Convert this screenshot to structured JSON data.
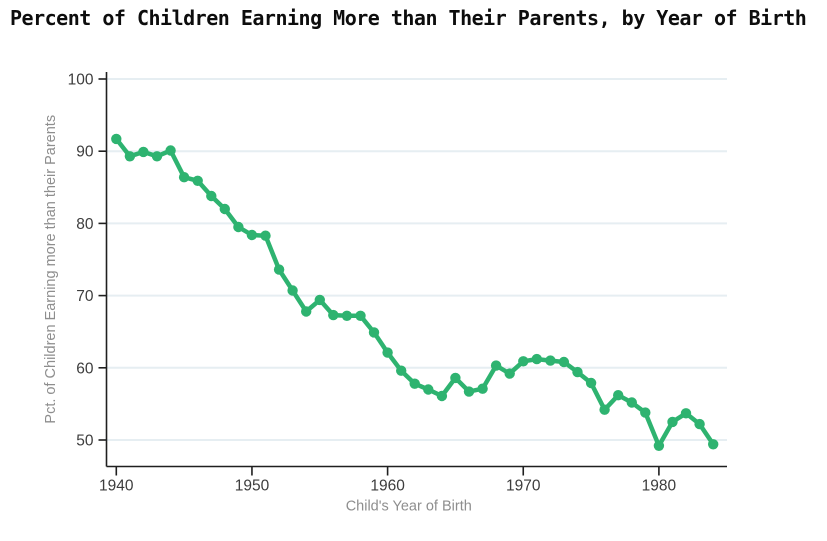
{
  "page": {
    "title": "Percent of Children Earning More than Their Parents, by Year of Birth"
  },
  "chart_data": {
    "type": "line",
    "title": "Percent of Children Earning More than Their Parents, by Year of Birth",
    "xlabel": "Child's Year of Birth",
    "ylabel": "Pct. of Children Earning more than their Parents",
    "x": [
      1940,
      1941,
      1942,
      1943,
      1944,
      1945,
      1946,
      1947,
      1948,
      1949,
      1950,
      1951,
      1952,
      1953,
      1954,
      1955,
      1956,
      1957,
      1958,
      1959,
      1960,
      1961,
      1962,
      1963,
      1964,
      1965,
      1966,
      1967,
      1968,
      1969,
      1970,
      1971,
      1972,
      1973,
      1974,
      1975,
      1976,
      1977,
      1978,
      1979,
      1980,
      1981,
      1982,
      1983,
      1984
    ],
    "values": [
      91.7,
      89.3,
      89.9,
      89.3,
      90.1,
      86.4,
      85.9,
      83.8,
      82.0,
      79.5,
      78.4,
      78.3,
      73.6,
      70.7,
      67.8,
      69.4,
      67.3,
      67.2,
      67.2,
      64.9,
      62.1,
      59.6,
      57.8,
      57.0,
      56.1,
      58.6,
      56.7,
      57.1,
      60.3,
      59.2,
      60.9,
      61.2,
      61.0,
      60.8,
      59.4,
      57.9,
      54.2,
      56.2,
      55.2,
      53.8,
      49.2,
      52.5,
      53.7,
      52.2,
      49.4
    ],
    "xticks": [
      1940,
      1950,
      1960,
      1970,
      1980
    ],
    "yticks": [
      50,
      60,
      70,
      80,
      90,
      100
    ],
    "xlim": [
      1939.3,
      1985
    ],
    "ylim": [
      46.5,
      101
    ],
    "grid": "horizontal",
    "legend": "none",
    "marker": "circle"
  },
  "colors": {
    "series_green": "#2eb370",
    "gridline": "#e6eef2",
    "axis_line": "#1f1f1f",
    "tick_label": "#3d3d3d",
    "axis_title": "#8e8e8e",
    "background": "#ffffff"
  }
}
